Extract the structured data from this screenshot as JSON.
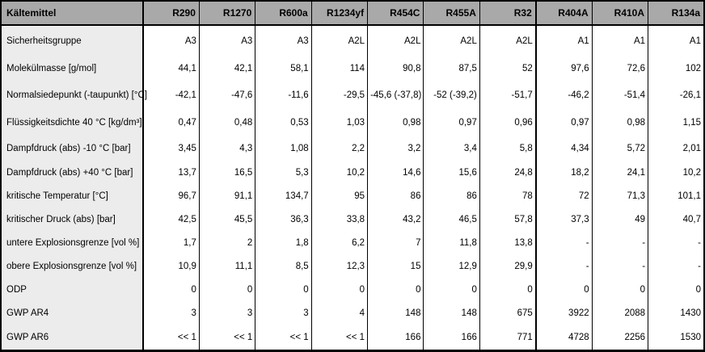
{
  "table": {
    "corner_label": "Kältemittel",
    "columns": [
      "R290",
      "R1270",
      "R600a",
      "R1234yf",
      "R454C",
      "R455A",
      "R32",
      "R404A",
      "R410A",
      "R134a"
    ],
    "group_separator_after_column": "R32",
    "rows": [
      {
        "label": "Sicherheitsgruppe",
        "values": [
          "A3",
          "A3",
          "A3",
          "A2L",
          "A2L",
          "A2L",
          "A2L",
          "A1",
          "A1",
          "A1"
        ]
      },
      {
        "label": "Molekülmasse  [g/mol]",
        "values": [
          "44,1",
          "42,1",
          "58,1",
          "114",
          "90,8",
          "87,5",
          "52",
          "97,6",
          "72,6",
          "102"
        ]
      },
      {
        "label": "Normalsiedepunkt  (-taupunkt) [°C]",
        "values": [
          "-42,1",
          "-47,6",
          "-11,6",
          "-29,5",
          "-45,6 (-37,8)",
          "-52 (-39,2)",
          "-51,7",
          "-46,2",
          "-51,4",
          "-26,1"
        ]
      },
      {
        "label": "Flüssigkeitsdichte 40 °C [kg/dm³]",
        "values": [
          "0,47",
          "0,48",
          "0,53",
          "1,03",
          "0,98",
          "0,97",
          "0,96",
          "0,97",
          "0,98",
          "1,15"
        ]
      },
      {
        "label": "Dampfdruck  (abs) -10 °C  [bar]",
        "values": [
          "3,45",
          "4,3",
          "1,08",
          "2,2",
          "3,2",
          "3,4",
          "5,8",
          "4,34",
          "5,72",
          "2,01"
        ]
      },
      {
        "label": "Dampfdruck  (abs) +40 °C  [bar]",
        "values": [
          "13,7",
          "16,5",
          "5,3",
          "10,2",
          "14,6",
          "15,6",
          "24,8",
          "18,2",
          "24,1",
          "10,2"
        ]
      },
      {
        "label": "kritische Temperatur  [°C]",
        "values": [
          "96,7",
          "91,1",
          "134,7",
          "95",
          "86",
          "86",
          "78",
          "72",
          "71,3",
          "101,1"
        ]
      },
      {
        "label": "kritischer Druck (abs) [bar]",
        "values": [
          "42,5",
          "45,5",
          "36,3",
          "33,8",
          "43,2",
          "46,5",
          "57,8",
          "37,3",
          "49",
          "40,7"
        ]
      },
      {
        "label": "untere Explosionsgrenze [vol %]",
        "values": [
          "1,7",
          "2",
          "1,8",
          "6,2",
          "7",
          "11,8",
          "13,8",
          "-",
          "-",
          "-"
        ]
      },
      {
        "label": "obere Explosionsgrenze [vol %]",
        "values": [
          "10,9",
          "11,1",
          "8,5",
          "12,3",
          "15",
          "12,9",
          "29,9",
          "-",
          "-",
          "-"
        ]
      },
      {
        "label": "ODP",
        "values": [
          "0",
          "0",
          "0",
          "0",
          "0",
          "0",
          "0",
          "0",
          "0",
          "0"
        ]
      },
      {
        "label": "GWP AR4",
        "values": [
          "3",
          "3",
          "3",
          "4",
          "148",
          "148",
          "675",
          "3922",
          "2088",
          "1430"
        ]
      },
      {
        "label": "GWP AR6",
        "values": [
          "<< 1",
          "<< 1",
          "<< 1",
          "<< 1",
          "166",
          "166",
          "771",
          "4728",
          "2256",
          "1530"
        ]
      }
    ]
  },
  "colors": {
    "header_fill": "#a9a9a9",
    "row_label_fill": "#ececec",
    "data_fill": "#ffffff",
    "border": "#000000",
    "text": "#000000"
  }
}
